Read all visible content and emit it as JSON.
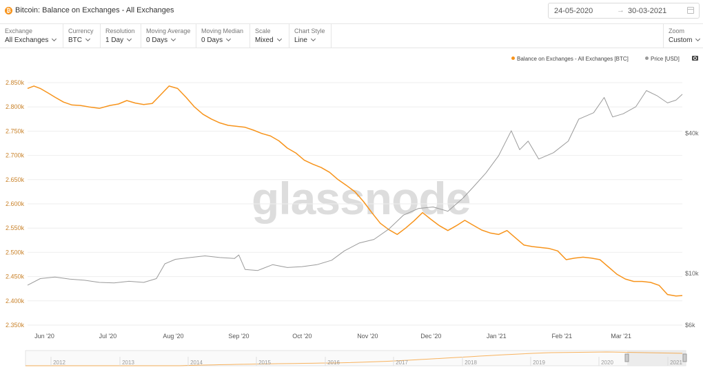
{
  "header": {
    "title": "Bitcoin: Balance on Exchanges - All Exchanges",
    "date_start": "24-05-2020",
    "date_arrow": "→",
    "date_end": "30-03-2021"
  },
  "toolbar": [
    {
      "label": "Exchange",
      "value": "All Exchanges"
    },
    {
      "label": "Currency",
      "value": "BTC"
    },
    {
      "label": "Resolution",
      "value": "1 Day"
    },
    {
      "label": "Moving Average",
      "value": "0 Days"
    },
    {
      "label": "Moving Median",
      "value": "0 Days"
    },
    {
      "label": "Scale",
      "value": "Mixed"
    },
    {
      "label": "Chart Style",
      "value": "Line"
    },
    {
      "label": "Zoom",
      "value": "Custom"
    }
  ],
  "legend": {
    "balance": "Balance on Exchanges - All Exchanges [BTC]",
    "price": "Price [USD]"
  },
  "watermark": "glassnode",
  "colors": {
    "balance": "#f7931a",
    "price": "#9a9a9a",
    "grid": "#eeeeee"
  },
  "chart_data": {
    "type": "line",
    "x_ticks": [
      "Jun '20",
      "Jul '20",
      "Aug '20",
      "Sep '20",
      "Oct '20",
      "Nov '20",
      "Dec '20",
      "Jan '21",
      "Feb '21",
      "Mar '21"
    ],
    "y_left_ticks": [
      "2.850k",
      "2.800k",
      "2.750k",
      "2.700k",
      "2.650k",
      "2.600k",
      "2.550k",
      "2.500k",
      "2.450k",
      "2.400k",
      "2.350k"
    ],
    "y_left_range": [
      2350,
      2850
    ],
    "y_right_ticks": [
      "$40k",
      "$10k",
      "$6k"
    ],
    "y_right_scale": "log",
    "series": [
      {
        "name": "Balance on Exchanges - All Exchanges [BTC]",
        "axis": "left",
        "points": [
          [
            "2020-05-24",
            2838
          ],
          [
            "2020-05-27",
            2843
          ],
          [
            "2020-05-30",
            2838
          ],
          [
            "2020-06-03",
            2828
          ],
          [
            "2020-06-06",
            2820
          ],
          [
            "2020-06-10",
            2810
          ],
          [
            "2020-06-14",
            2804
          ],
          [
            "2020-06-18",
            2803
          ],
          [
            "2020-06-22",
            2800
          ],
          [
            "2020-06-27",
            2797
          ],
          [
            "2020-07-02",
            2803
          ],
          [
            "2020-07-06",
            2806
          ],
          [
            "2020-07-10",
            2813
          ],
          [
            "2020-07-14",
            2808
          ],
          [
            "2020-07-18",
            2805
          ],
          [
            "2020-07-22",
            2807
          ],
          [
            "2020-07-26",
            2825
          ],
          [
            "2020-07-30",
            2843
          ],
          [
            "2020-08-03",
            2838
          ],
          [
            "2020-08-07",
            2820
          ],
          [
            "2020-08-11",
            2800
          ],
          [
            "2020-08-15",
            2785
          ],
          [
            "2020-08-19",
            2775
          ],
          [
            "2020-08-23",
            2767
          ],
          [
            "2020-08-27",
            2762
          ],
          [
            "2020-08-31",
            2760
          ],
          [
            "2020-09-04",
            2758
          ],
          [
            "2020-09-08",
            2752
          ],
          [
            "2020-09-12",
            2745
          ],
          [
            "2020-09-16",
            2740
          ],
          [
            "2020-09-20",
            2730
          ],
          [
            "2020-09-24",
            2715
          ],
          [
            "2020-09-28",
            2705
          ],
          [
            "2020-10-02",
            2690
          ],
          [
            "2020-10-06",
            2682
          ],
          [
            "2020-10-10",
            2675
          ],
          [
            "2020-10-14",
            2665
          ],
          [
            "2020-10-18",
            2650
          ],
          [
            "2020-10-22",
            2638
          ],
          [
            "2020-10-26",
            2625
          ],
          [
            "2020-10-30",
            2605
          ],
          [
            "2020-11-03",
            2582
          ],
          [
            "2020-11-07",
            2560
          ],
          [
            "2020-11-11",
            2547
          ],
          [
            "2020-11-15",
            2537
          ],
          [
            "2020-11-19",
            2550
          ],
          [
            "2020-11-23",
            2565
          ],
          [
            "2020-11-27",
            2582
          ],
          [
            "2020-12-01",
            2568
          ],
          [
            "2020-12-05",
            2555
          ],
          [
            "2020-12-09",
            2545
          ],
          [
            "2020-12-13",
            2555
          ],
          [
            "2020-12-17",
            2566
          ],
          [
            "2020-12-21",
            2556
          ],
          [
            "2020-12-25",
            2546
          ],
          [
            "2020-12-29",
            2540
          ],
          [
            "2021-01-02",
            2537
          ],
          [
            "2021-01-06",
            2545
          ],
          [
            "2021-01-10",
            2530
          ],
          [
            "2021-01-14",
            2515
          ],
          [
            "2021-01-18",
            2512
          ],
          [
            "2021-01-22",
            2510
          ],
          [
            "2021-01-26",
            2508
          ],
          [
            "2021-01-30",
            2503
          ],
          [
            "2021-02-03",
            2485
          ],
          [
            "2021-02-07",
            2488
          ],
          [
            "2021-02-11",
            2490
          ],
          [
            "2021-02-15",
            2488
          ],
          [
            "2021-02-19",
            2485
          ],
          [
            "2021-02-23",
            2470
          ],
          [
            "2021-02-27",
            2455
          ],
          [
            "2021-03-03",
            2445
          ],
          [
            "2021-03-07",
            2440
          ],
          [
            "2021-03-11",
            2440
          ],
          [
            "2021-03-15",
            2438
          ],
          [
            "2021-03-19",
            2432
          ],
          [
            "2021-03-23",
            2413
          ],
          [
            "2021-03-27",
            2410
          ],
          [
            "2021-03-30",
            2411
          ]
        ]
      },
      {
        "name": "Price [USD]",
        "axis": "right",
        "points": [
          [
            "2020-05-24",
            8900
          ],
          [
            "2020-05-30",
            9500
          ],
          [
            "2020-06-06",
            9650
          ],
          [
            "2020-06-13",
            9450
          ],
          [
            "2020-06-20",
            9350
          ],
          [
            "2020-06-27",
            9150
          ],
          [
            "2020-07-04",
            9100
          ],
          [
            "2020-07-11",
            9250
          ],
          [
            "2020-07-18",
            9150
          ],
          [
            "2020-07-24",
            9500
          ],
          [
            "2020-07-28",
            11000
          ],
          [
            "2020-08-02",
            11500
          ],
          [
            "2020-08-09",
            11700
          ],
          [
            "2020-08-16",
            11900
          ],
          [
            "2020-08-23",
            11700
          ],
          [
            "2020-08-30",
            11600
          ],
          [
            "2020-09-01",
            12000
          ],
          [
            "2020-09-04",
            10400
          ],
          [
            "2020-09-10",
            10300
          ],
          [
            "2020-09-17",
            10900
          ],
          [
            "2020-09-24",
            10600
          ],
          [
            "2020-10-01",
            10700
          ],
          [
            "2020-10-08",
            10900
          ],
          [
            "2020-10-15",
            11400
          ],
          [
            "2020-10-21",
            12500
          ],
          [
            "2020-10-28",
            13500
          ],
          [
            "2020-11-04",
            14000
          ],
          [
            "2020-11-11",
            15500
          ],
          [
            "2020-11-18",
            17800
          ],
          [
            "2020-11-25",
            19000
          ],
          [
            "2020-12-02",
            19300
          ],
          [
            "2020-12-09",
            18500
          ],
          [
            "2020-12-16",
            21000
          ],
          [
            "2020-12-21",
            23500
          ],
          [
            "2020-12-27",
            27000
          ],
          [
            "2021-01-02",
            32000
          ],
          [
            "2021-01-08",
            41000
          ],
          [
            "2021-01-12",
            34000
          ],
          [
            "2021-01-16",
            37000
          ],
          [
            "2021-01-21",
            31000
          ],
          [
            "2021-01-28",
            33000
          ],
          [
            "2021-02-04",
            37000
          ],
          [
            "2021-02-09",
            46000
          ],
          [
            "2021-02-16",
            49000
          ],
          [
            "2021-02-21",
            57000
          ],
          [
            "2021-02-25",
            47000
          ],
          [
            "2021-03-02",
            48500
          ],
          [
            "2021-03-08",
            52000
          ],
          [
            "2021-03-13",
            61000
          ],
          [
            "2021-03-18",
            58000
          ],
          [
            "2021-03-23",
            54000
          ],
          [
            "2021-03-27",
            55500
          ],
          [
            "2021-03-30",
            58800
          ]
        ]
      }
    ],
    "navigator": {
      "labels": [
        "2012",
        "2013",
        "2014",
        "2015",
        "2016",
        "2017",
        "2018",
        "2019",
        "2020",
        "2021"
      ]
    }
  }
}
